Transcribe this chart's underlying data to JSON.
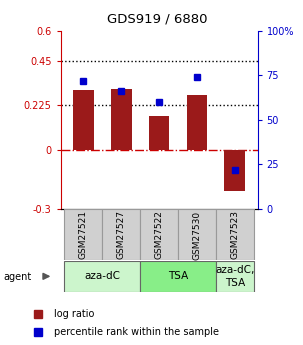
{
  "title": "GDS919 / 6880",
  "categories": [
    "GSM27521",
    "GSM27527",
    "GSM27522",
    "GSM27530",
    "GSM27523"
  ],
  "log_ratio": [
    0.3,
    0.305,
    0.17,
    0.275,
    -0.21
  ],
  "percentile_rank": [
    0.72,
    0.66,
    0.6,
    0.74,
    0.22
  ],
  "bar_color": "#9b1a1a",
  "dot_color": "#0000cc",
  "ylim_left": [
    -0.3,
    0.6
  ],
  "ylim_right": [
    0.0,
    1.0
  ],
  "yticks_left": [
    -0.3,
    0.0,
    0.225,
    0.45,
    0.6
  ],
  "ytick_labels_left": [
    "-0.3",
    "0",
    "0.225",
    "0.45",
    "0.6"
  ],
  "yticks_right": [
    0.0,
    0.25,
    0.5,
    0.75,
    1.0
  ],
  "ytick_labels_right": [
    "0",
    "25",
    "50",
    "75",
    "100%"
  ],
  "hlines": [
    0.225,
    0.45
  ],
  "hline_zero_color": "#cc0000",
  "hline_dotted_color": "#000000",
  "agent_labels": [
    "aza-dC",
    "TSA",
    "aza-dC,\nTSA"
  ],
  "agent_groups": [
    [
      0,
      1
    ],
    [
      2,
      3
    ],
    [
      4
    ]
  ],
  "agent_colors": [
    "#ccf5cc",
    "#88ee88",
    "#ccf5cc"
  ],
  "sample_box_color": "#d0d0d0",
  "bar_width": 0.55,
  "legend_items": [
    "log ratio",
    "percentile rank within the sample"
  ]
}
